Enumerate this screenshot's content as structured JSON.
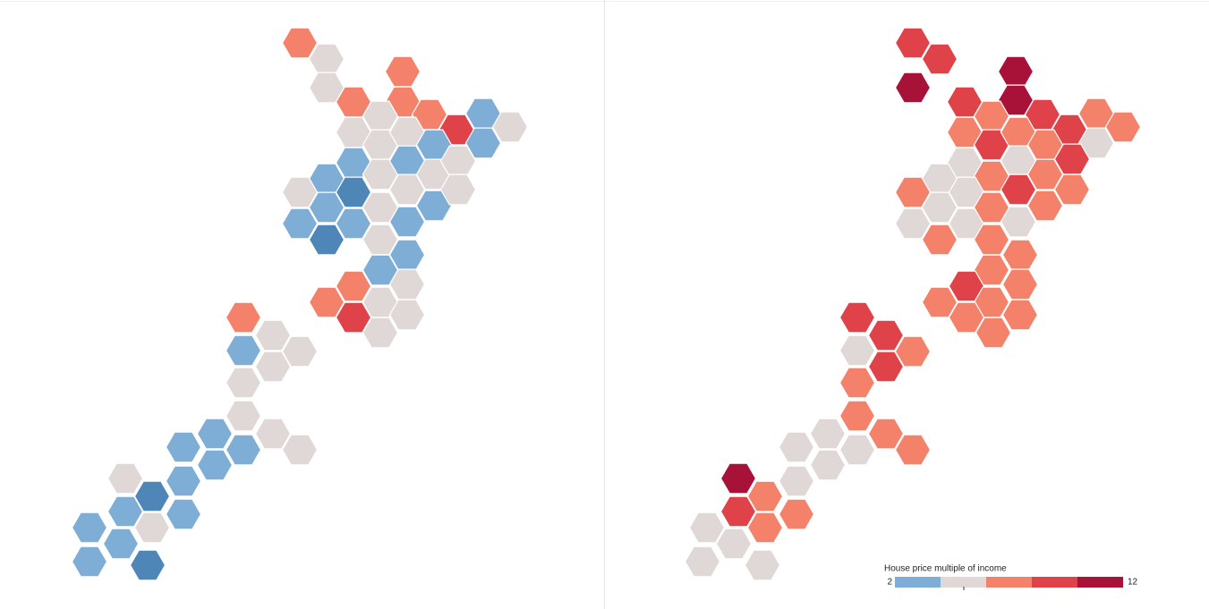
{
  "legend": {
    "title": "House price multiple of income",
    "min_label": "2",
    "max_label": "12",
    "colors": [
      "#7eadd6",
      "#e0d8d7",
      "#f4826a",
      "#e0424a",
      "#a81138"
    ]
  }
}
